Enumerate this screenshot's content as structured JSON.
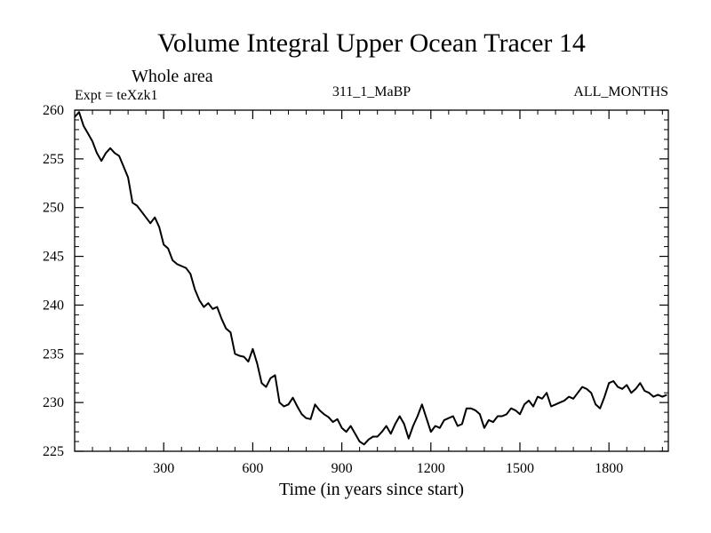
{
  "chart_data": {
    "type": "line",
    "title": "Volume Integral Upper Ocean Tracer 14",
    "subtitle": "Whole area",
    "experiment_label": "Expt = teXzk1",
    "run_label": "311_1_MaBP",
    "period_label": "ALL_MONTHS",
    "xlabel": "Time (in years since start)",
    "ylabel": "",
    "xlim": [
      0,
      2000
    ],
    "ylim": [
      225,
      260
    ],
    "x_ticks": [
      300,
      600,
      900,
      1200,
      1500,
      1800
    ],
    "x_tick_labels": [
      "300",
      "600",
      "900",
      "1200",
      "1500",
      "1800"
    ],
    "y_ticks": [
      225,
      230,
      235,
      240,
      245,
      250,
      255,
      260
    ],
    "y_tick_labels": [
      "225",
      "230",
      "235",
      "240",
      "245",
      "250",
      "255",
      "260"
    ],
    "grid": false,
    "series": [
      {
        "name": "Volume Integral Upper Ocean Tracer 14",
        "color": "#000000",
        "x": [
          0,
          15,
          30,
          45,
          60,
          75,
          90,
          105,
          120,
          135,
          150,
          165,
          180,
          195,
          210,
          225,
          240,
          255,
          270,
          285,
          300,
          315,
          330,
          345,
          360,
          375,
          390,
          405,
          420,
          435,
          450,
          465,
          480,
          495,
          510,
          525,
          540,
          555,
          570,
          585,
          600,
          615,
          630,
          645,
          660,
          675,
          690,
          705,
          720,
          735,
          750,
          765,
          780,
          795,
          810,
          825,
          840,
          855,
          870,
          885,
          900,
          915,
          930,
          945,
          960,
          975,
          990,
          1005,
          1020,
          1035,
          1050,
          1065,
          1080,
          1095,
          1110,
          1125,
          1140,
          1155,
          1170,
          1185,
          1200,
          1215,
          1230,
          1245,
          1260,
          1275,
          1290,
          1305,
          1320,
          1335,
          1350,
          1365,
          1380,
          1395,
          1410,
          1425,
          1440,
          1455,
          1470,
          1485,
          1500,
          1515,
          1530,
          1545,
          1560,
          1575,
          1590,
          1605,
          1620,
          1635,
          1650,
          1665,
          1680,
          1695,
          1710,
          1725,
          1740,
          1755,
          1770,
          1785,
          1800,
          1815,
          1830,
          1845,
          1860,
          1875,
          1890,
          1905,
          1920,
          1935,
          1950,
          1965,
          1980,
          1995
        ],
        "values": [
          259.3,
          259.8,
          258.4,
          257.6,
          256.8,
          255.6,
          254.8,
          255.6,
          256.1,
          255.6,
          255.3,
          254.2,
          253.1,
          250.5,
          250.2,
          249.6,
          249.0,
          248.4,
          249.0,
          248.0,
          246.2,
          245.8,
          244.6,
          244.2,
          244.0,
          243.8,
          243.2,
          241.6,
          240.5,
          239.8,
          240.2,
          239.6,
          239.8,
          238.6,
          237.6,
          237.2,
          235.0,
          234.8,
          234.7,
          234.2,
          235.5,
          234.0,
          232.0,
          231.6,
          232.5,
          232.8,
          230.0,
          229.6,
          229.8,
          230.5,
          229.6,
          228.8,
          228.4,
          228.3,
          229.8,
          229.2,
          228.8,
          228.5,
          228.0,
          228.3,
          227.4,
          227.0,
          227.6,
          226.8,
          226.0,
          225.7,
          226.2,
          226.5,
          226.5,
          227.0,
          227.6,
          226.8,
          227.8,
          228.6,
          227.8,
          226.3,
          227.6,
          228.6,
          229.8,
          228.4,
          227.0,
          227.6,
          227.4,
          228.2,
          228.4,
          228.6,
          227.6,
          227.8,
          229.4,
          229.4,
          229.2,
          228.8,
          227.4,
          228.2,
          228.0,
          228.6,
          228.6,
          228.8,
          229.4,
          229.2,
          228.8,
          229.8,
          230.2,
          229.6,
          230.6,
          230.4,
          231.0,
          229.6,
          229.8,
          230.0,
          230.2,
          230.6,
          230.4,
          231.0,
          231.6,
          231.4,
          231.0,
          229.8,
          229.4,
          230.6,
          232.0,
          232.2,
          231.6,
          231.4,
          231.8,
          231.0,
          231.4,
          232.0,
          231.2,
          231.0,
          230.6,
          230.8,
          230.6,
          230.8
        ]
      }
    ]
  }
}
